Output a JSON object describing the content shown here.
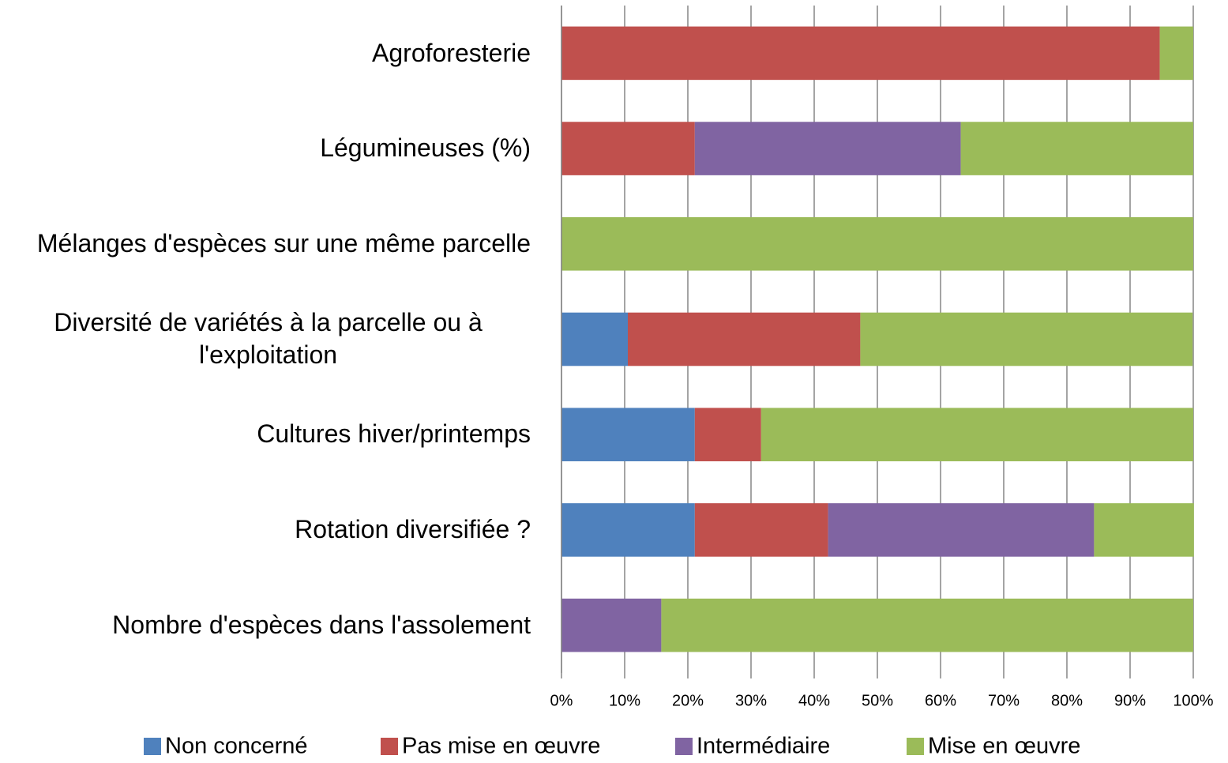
{
  "chart_data": {
    "type": "stacked_barh",
    "categories": [
      "Agroforesterie",
      "Légumineuses (%)",
      "Mélanges d'espèces sur une même parcelle",
      "Diversité de variétés à la parcelle ou à l'exploitation",
      "Cultures hiver/printemps",
      "Rotation diversifiée ?",
      "Nombre d'espèces dans l'assolement"
    ],
    "series": [
      {
        "name": "Non concerné",
        "color": "#4f81bd",
        "values": [
          0,
          0,
          0,
          10.5,
          21.1,
          21.1,
          0
        ]
      },
      {
        "name": "Pas mise en œuvre",
        "color": "#c0504d",
        "values": [
          94.7,
          21.1,
          0,
          36.8,
          10.5,
          21.1,
          0
        ]
      },
      {
        "name": "Intermédiaire",
        "color": "#8064a2",
        "values": [
          0,
          42.1,
          0,
          0,
          0,
          42.1,
          15.8
        ]
      },
      {
        "name": "Mise en œuvre",
        "color": "#9bbb59",
        "values": [
          5.3,
          36.8,
          100,
          52.6,
          68.4,
          15.8,
          84.2
        ]
      }
    ],
    "xlim": [
      0,
      100
    ],
    "xticks": [
      {
        "value": 0,
        "label": "0%"
      },
      {
        "value": 10,
        "label": "10%"
      },
      {
        "value": 20,
        "label": "20%"
      },
      {
        "value": 30,
        "label": "30%"
      },
      {
        "value": 40,
        "label": "40%"
      },
      {
        "value": 50,
        "label": "50%"
      },
      {
        "value": 60,
        "label": "60%"
      },
      {
        "value": 70,
        "label": "70%"
      },
      {
        "value": 80,
        "label": "80%"
      },
      {
        "value": 90,
        "label": "90%"
      },
      {
        "value": 100,
        "label": "100%"
      }
    ],
    "grid": true,
    "legend": "bottom"
  }
}
